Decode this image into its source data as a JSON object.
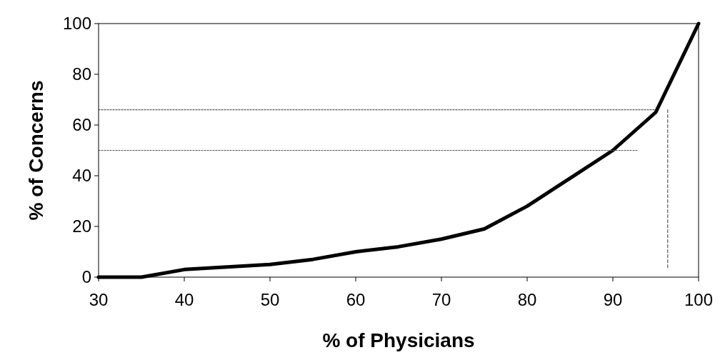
{
  "chart_data": {
    "type": "line",
    "xlabel": "% of Physicians",
    "ylabel": "% of Concerns",
    "xlim": [
      30,
      100
    ],
    "xticks": [
      30,
      40,
      50,
      60,
      70,
      80,
      90,
      100
    ],
    "ylim": [
      0,
      100
    ],
    "yticks": [
      0,
      20,
      40,
      60,
      80,
      100
    ],
    "grid": false,
    "marker": "none",
    "series": [
      {
        "color": "#000000",
        "line_style": "solid",
        "x": [
          30,
          35,
          40,
          45,
          50,
          55,
          60,
          65,
          70,
          75,
          80,
          85,
          90,
          95,
          100
        ],
        "values": [
          0,
          0,
          3,
          4,
          5,
          7,
          10,
          12,
          15,
          19,
          28,
          39,
          50,
          65,
          100
        ]
      },
      {
        "color": "#555555",
        "line_style": "dotted",
        "x": [
          30,
          95
        ],
        "values": [
          66,
          66
        ]
      },
      {
        "color": "#555555",
        "line_style": "dotted",
        "x": [
          30,
          93
        ],
        "values": [
          50,
          50
        ]
      },
      {
        "color": "#555555",
        "line_style": "dashed",
        "x": [
          96.4,
          96.4
        ],
        "values": [
          66,
          3.5
        ]
      }
    ]
  }
}
